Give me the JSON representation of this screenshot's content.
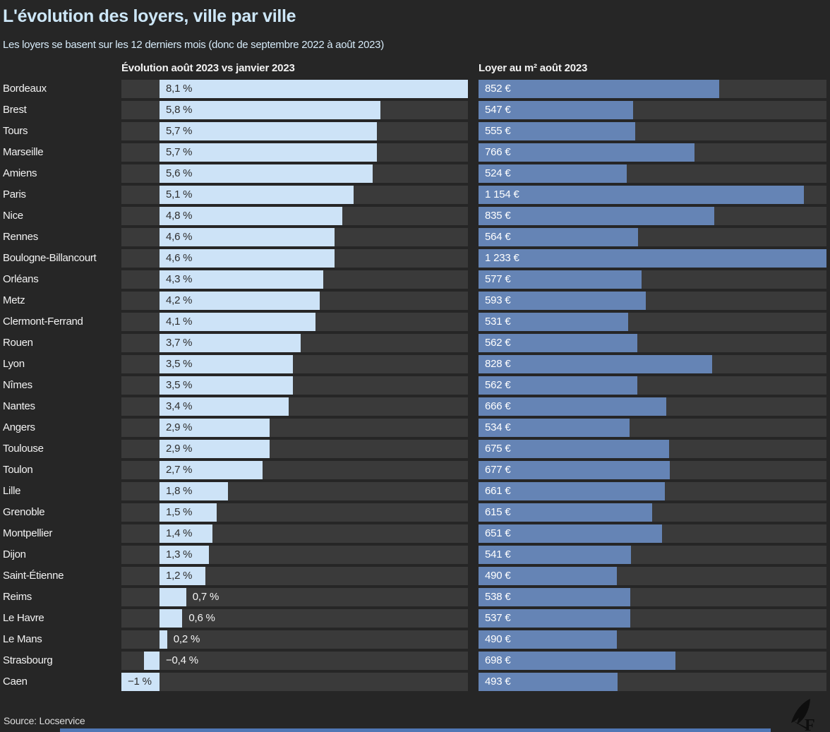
{
  "title": "L'évolution des loyers, ville par ville",
  "subtitle": "Les loyers se basent sur les 12 derniers mois (donc de septembre 2022 à août 2023)",
  "columns": {
    "evolution": "Évolution août 2023 vs janvier 2023",
    "rent": "Loyer au m² août 2023"
  },
  "source": "Source: Locservice",
  "logo_icon": "figaro-quill-logo",
  "colors": {
    "background": "#262626",
    "bar_track": "#3a3a3a",
    "evolution_bar": "#cde3f7",
    "rent_bar": "#6584b5",
    "title_text": "#cde7f8",
    "body_text": "#f2f2f2",
    "value_text_dark": "#2e2e2e",
    "bottom_strip": "#5077b5"
  },
  "chart_data": {
    "type": "bar",
    "orientation": "horizontal",
    "grid": false,
    "legend_position": "column-headers-top",
    "categories": [
      "Bordeaux",
      "Brest",
      "Tours",
      "Marseille",
      "Amiens",
      "Paris",
      "Nice",
      "Rennes",
      "Boulogne-Billancourt",
      "Orléans",
      "Metz",
      "Clermont-Ferrand",
      "Rouen",
      "Lyon",
      "Nîmes",
      "Nantes",
      "Angers",
      "Toulouse",
      "Toulon",
      "Lille",
      "Grenoble",
      "Montpellier",
      "Dijon",
      "Saint-Étienne",
      "Reims",
      "Le Havre",
      "Le Mans",
      "Strasbourg",
      "Caen"
    ],
    "series": [
      {
        "name": "Évolution août 2023 vs janvier 2023",
        "unit": "%",
        "axis_min": -1,
        "axis_max": 8.1,
        "values": [
          8.1,
          5.8,
          5.7,
          5.7,
          5.6,
          5.1,
          4.8,
          4.6,
          4.6,
          4.3,
          4.2,
          4.1,
          3.7,
          3.5,
          3.5,
          3.4,
          2.9,
          2.9,
          2.7,
          1.8,
          1.5,
          1.4,
          1.3,
          1.2,
          0.7,
          0.6,
          0.2,
          -0.4,
          -1
        ],
        "labels": [
          "8,1 %",
          "5,8 %",
          "5,7 %",
          "5,7 %",
          "5,6 %",
          "5,1 %",
          "4,8 %",
          "4,6 %",
          "4,6 %",
          "4,3 %",
          "4,2 %",
          "4,1 %",
          "3,7 %",
          "3,5 %",
          "3,5 %",
          "3,4 %",
          "2,9 %",
          "2,9 %",
          "2,7 %",
          "1,8 %",
          "1,5 %",
          "1,4 %",
          "1,3 %",
          "1,2 %",
          "0,7 %",
          "0,6 %",
          "0,2 %",
          "−0,4 %",
          "−1 %"
        ]
      },
      {
        "name": "Loyer au m² août 2023",
        "unit": "€",
        "axis_min": 0,
        "axis_max": 1233,
        "values": [
          852,
          547,
          555,
          766,
          524,
          1154,
          835,
          564,
          1233,
          577,
          593,
          531,
          562,
          828,
          562,
          666,
          534,
          675,
          677,
          661,
          615,
          651,
          541,
          490,
          538,
          537,
          490,
          698,
          493
        ],
        "labels": [
          "852 €",
          "547 €",
          "555 €",
          "766 €",
          "524 €",
          "1 154 €",
          "835 €",
          "564 €",
          "1 233 €",
          "577 €",
          "593 €",
          "531 €",
          "562 €",
          "828 €",
          "562 €",
          "666 €",
          "534 €",
          "675 €",
          "677 €",
          "661 €",
          "615 €",
          "651 €",
          "541 €",
          "490 €",
          "538 €",
          "537 €",
          "490 €",
          "698 €",
          "493 €"
        ]
      }
    ]
  }
}
